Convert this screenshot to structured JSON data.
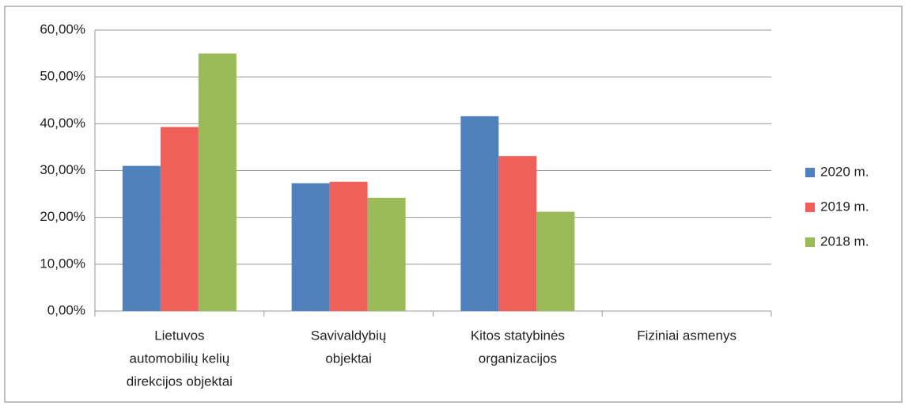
{
  "chart_data": {
    "type": "bar",
    "categories": [
      [
        "Lietuvos",
        "automobilių kelių",
        "direkcijos objektai"
      ],
      [
        "Savivaldybių",
        "objektai"
      ],
      [
        "Kitos statybinės",
        "organizacijos"
      ],
      [
        "Fiziniai asmenys"
      ]
    ],
    "series": [
      {
        "name": "2020 m.",
        "color": "#4f81bd",
        "values": [
          31,
          27.3,
          41.6,
          0
        ]
      },
      {
        "name": "2019 m.",
        "color": "#f0605a",
        "values": [
          39.3,
          27.6,
          33.1,
          0
        ]
      },
      {
        "name": "2018 m.",
        "color": "#9bbb59",
        "values": [
          55,
          24.2,
          21.2,
          0
        ]
      }
    ],
    "ylim": [
      0,
      60
    ],
    "yticks": [
      {
        "value": 0,
        "label": "0,00%"
      },
      {
        "value": 10,
        "label": "10,00%"
      },
      {
        "value": 20,
        "label": "20,00%"
      },
      {
        "value": 30,
        "label": "30,00%"
      },
      {
        "value": 40,
        "label": "40,00%"
      },
      {
        "value": 50,
        "label": "50,00%"
      },
      {
        "value": 60,
        "label": "60,00%"
      }
    ],
    "grid": true,
    "legend": "right"
  }
}
